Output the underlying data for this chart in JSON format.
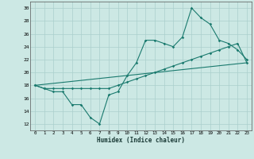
{
  "title": "",
  "xlabel": "Humidex (Indice chaleur)",
  "bg_color": "#cce8e4",
  "grid_color": "#aacfcc",
  "line_color": "#1a7a6e",
  "xlim": [
    -0.5,
    23.5
  ],
  "ylim": [
    11,
    31
  ],
  "yticks": [
    12,
    14,
    16,
    18,
    20,
    22,
    24,
    26,
    28,
    30
  ],
  "xticks": [
    0,
    1,
    2,
    3,
    4,
    5,
    6,
    7,
    8,
    9,
    10,
    11,
    12,
    13,
    14,
    15,
    16,
    17,
    18,
    19,
    20,
    21,
    22,
    23
  ],
  "line1_x": [
    0,
    1,
    2,
    3,
    4,
    5,
    6,
    7,
    8,
    9,
    10,
    11,
    12,
    13,
    14,
    15,
    16,
    17,
    18,
    19,
    20,
    21,
    22,
    23
  ],
  "line1_y": [
    18,
    17.5,
    17,
    17,
    15,
    15,
    13,
    12,
    16.5,
    17,
    19.5,
    21.5,
    25,
    25,
    24.5,
    24,
    25.5,
    30,
    28.5,
    27.5,
    25,
    24.5,
    23.5,
    22
  ],
  "line2_x": [
    0,
    1,
    2,
    3,
    4,
    5,
    6,
    7,
    8,
    9,
    10,
    11,
    12,
    13,
    14,
    15,
    16,
    17,
    18,
    19,
    20,
    21,
    22,
    23
  ],
  "line2_y": [
    18,
    17.5,
    17.5,
    17.5,
    17.5,
    17.5,
    17.5,
    17.5,
    17.5,
    18,
    18.5,
    19,
    19.5,
    20,
    20.5,
    21,
    21.5,
    22,
    22.5,
    23,
    23.5,
    24,
    24.5,
    21.5
  ],
  "line3_x": [
    0,
    23
  ],
  "line3_y": [
    18,
    21.5
  ]
}
